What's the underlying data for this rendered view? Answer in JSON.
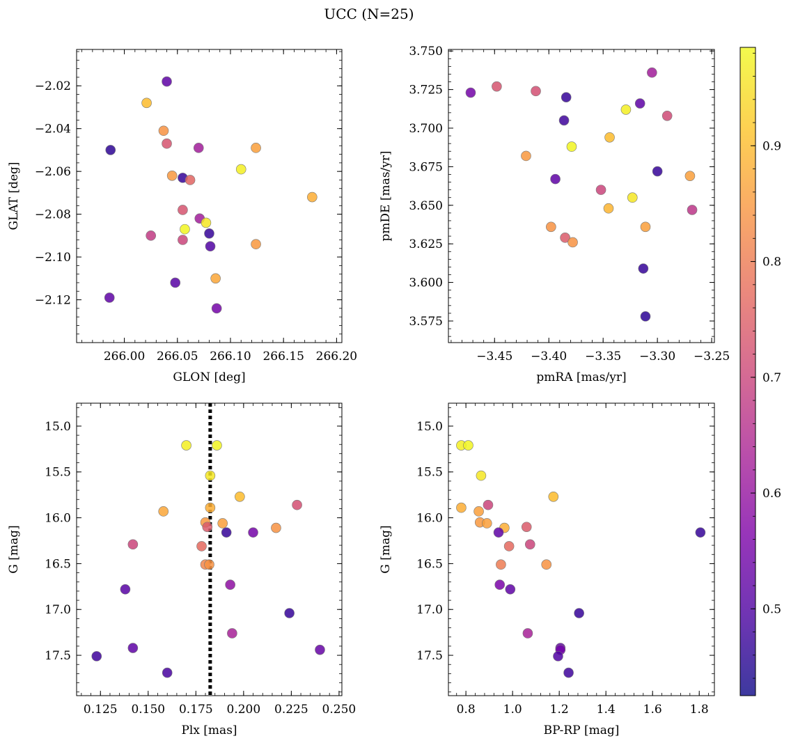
{
  "figure": {
    "title": "UCC (N=25)"
  },
  "colorbar": {
    "ticks": [
      0.5,
      0.6,
      0.7,
      0.8,
      0.9
    ],
    "tick_labels": [
      "0.5",
      "0.6",
      "0.7",
      "0.8",
      "0.9"
    ],
    "range": [
      0.425,
      0.985
    ],
    "colormap": "plasma"
  },
  "chart_data": [
    {
      "type": "scatter",
      "xlabel": "GLON [deg]",
      "ylabel": "GLAT [deg]",
      "xlim": [
        265.955,
        266.205
      ],
      "ylim": [
        -2.14,
        -2.003
      ],
      "xticks": [
        266.0,
        266.05,
        266.1,
        266.15,
        266.2
      ],
      "xtick_labels": [
        "266.00",
        "266.05",
        "266.10",
        "266.15",
        "266.20"
      ],
      "yticks": [
        -2.12,
        -2.1,
        -2.08,
        -2.06,
        -2.04,
        -2.02
      ],
      "ytick_labels": [
        "−2.12",
        "−2.10",
        "−2.08",
        "−2.06",
        "−2.04",
        "−2.02"
      ],
      "points": [
        {
          "x": 266.04,
          "y": -2.018,
          "c": 0.52
        },
        {
          "x": 266.021,
          "y": -2.028,
          "c": 0.9
        },
        {
          "x": 266.037,
          "y": -2.041,
          "c": 0.84
        },
        {
          "x": 266.04,
          "y": -2.047,
          "c": 0.73
        },
        {
          "x": 266.07,
          "y": -2.049,
          "c": 0.62
        },
        {
          "x": 266.124,
          "y": -2.049,
          "c": 0.86
        },
        {
          "x": 265.987,
          "y": -2.05,
          "c": 0.46
        },
        {
          "x": 266.11,
          "y": -2.059,
          "c": 0.97
        },
        {
          "x": 266.045,
          "y": -2.062,
          "c": 0.85
        },
        {
          "x": 266.055,
          "y": -2.063,
          "c": 0.47
        },
        {
          "x": 266.062,
          "y": -2.064,
          "c": 0.76
        },
        {
          "x": 266.177,
          "y": -2.072,
          "c": 0.88
        },
        {
          "x": 266.055,
          "y": -2.078,
          "c": 0.73
        },
        {
          "x": 266.071,
          "y": -2.082,
          "c": 0.62
        },
        {
          "x": 266.077,
          "y": -2.084,
          "c": 0.96
        },
        {
          "x": 266.057,
          "y": -2.087,
          "c": 0.98
        },
        {
          "x": 266.08,
          "y": -2.089,
          "c": 0.47
        },
        {
          "x": 266.025,
          "y": -2.09,
          "c": 0.68
        },
        {
          "x": 266.055,
          "y": -2.092,
          "c": 0.7
        },
        {
          "x": 266.124,
          "y": -2.094,
          "c": 0.85
        },
        {
          "x": 266.081,
          "y": -2.095,
          "c": 0.5
        },
        {
          "x": 266.086,
          "y": -2.11,
          "c": 0.87
        },
        {
          "x": 266.048,
          "y": -2.112,
          "c": 0.51
        },
        {
          "x": 265.986,
          "y": -2.119,
          "c": 0.52
        },
        {
          "x": 266.087,
          "y": -2.124,
          "c": 0.55
        }
      ]
    },
    {
      "type": "scatter",
      "xlabel": "pmRA [mas/yr]",
      "ylabel": "pmDE [mas/yr]",
      "xlim": [
        -3.4925,
        -3.2475
      ],
      "ylim": [
        3.561,
        3.751
      ],
      "xticks": [
        -3.45,
        -3.4,
        -3.35,
        -3.3,
        -3.25
      ],
      "xtick_labels": [
        "−3.45",
        "−3.40",
        "−3.35",
        "−3.30",
        "−3.25"
      ],
      "yticks": [
        3.575,
        3.6,
        3.625,
        3.65,
        3.675,
        3.7,
        3.725,
        3.75
      ],
      "ytick_labels": [
        "3.575",
        "3.600",
        "3.625",
        "3.650",
        "3.675",
        "3.700",
        "3.725",
        "3.750"
      ],
      "points": [
        {
          "x": -3.305,
          "y": 3.736,
          "c": 0.62
        },
        {
          "x": -3.448,
          "y": 3.727,
          "c": 0.73
        },
        {
          "x": -3.472,
          "y": 3.723,
          "c": 0.55
        },
        {
          "x": -3.412,
          "y": 3.724,
          "c": 0.72
        },
        {
          "x": -3.384,
          "y": 3.72,
          "c": 0.47
        },
        {
          "x": -3.316,
          "y": 3.716,
          "c": 0.52
        },
        {
          "x": -3.329,
          "y": 3.712,
          "c": 0.97
        },
        {
          "x": -3.291,
          "y": 3.708,
          "c": 0.71
        },
        {
          "x": -3.386,
          "y": 3.705,
          "c": 0.48
        },
        {
          "x": -3.344,
          "y": 3.694,
          "c": 0.9
        },
        {
          "x": -3.379,
          "y": 3.688,
          "c": 0.98
        },
        {
          "x": -3.421,
          "y": 3.682,
          "c": 0.85
        },
        {
          "x": -3.3,
          "y": 3.672,
          "c": 0.47
        },
        {
          "x": -3.27,
          "y": 3.669,
          "c": 0.86
        },
        {
          "x": -3.394,
          "y": 3.667,
          "c": 0.52
        },
        {
          "x": -3.352,
          "y": 3.66,
          "c": 0.7
        },
        {
          "x": -3.323,
          "y": 3.655,
          "c": 0.96
        },
        {
          "x": -3.345,
          "y": 3.648,
          "c": 0.89
        },
        {
          "x": -3.268,
          "y": 3.647,
          "c": 0.67
        },
        {
          "x": -3.398,
          "y": 3.636,
          "c": 0.84
        },
        {
          "x": -3.311,
          "y": 3.636,
          "c": 0.86
        },
        {
          "x": -3.385,
          "y": 3.629,
          "c": 0.74
        },
        {
          "x": -3.378,
          "y": 3.626,
          "c": 0.84
        },
        {
          "x": -3.313,
          "y": 3.609,
          "c": 0.47
        },
        {
          "x": -3.311,
          "y": 3.578,
          "c": 0.46
        }
      ]
    },
    {
      "type": "scatter",
      "xlabel": "Plx [mas]",
      "ylabel": "G [mag]",
      "xlim": [
        0.1125,
        0.2515
      ],
      "ylim": [
        17.94,
        14.75
      ],
      "y_inverted": true,
      "vline": 0.1825,
      "xticks": [
        0.125,
        0.15,
        0.175,
        0.2,
        0.225,
        0.25
      ],
      "xtick_labels": [
        "0.125",
        "0.150",
        "0.175",
        "0.200",
        "0.225",
        "0.250"
      ],
      "yticks": [
        15.0,
        15.5,
        16.0,
        16.5,
        17.0,
        17.5
      ],
      "ytick_labels": [
        "15.0",
        "15.5",
        "16.0",
        "16.5",
        "17.0",
        "17.5"
      ],
      "points": [
        {
          "x": 0.17,
          "y": 15.21,
          "c": 0.97
        },
        {
          "x": 0.186,
          "y": 15.21,
          "c": 0.98
        },
        {
          "x": 0.1825,
          "y": 15.54,
          "c": 0.96
        },
        {
          "x": 0.198,
          "y": 15.77,
          "c": 0.9
        },
        {
          "x": 0.228,
          "y": 15.86,
          "c": 0.72
        },
        {
          "x": 0.158,
          "y": 15.93,
          "c": 0.87
        },
        {
          "x": 0.1825,
          "y": 15.89,
          "c": 0.88
        },
        {
          "x": 0.18,
          "y": 16.05,
          "c": 0.85
        },
        {
          "x": 0.189,
          "y": 16.06,
          "c": 0.86
        },
        {
          "x": 0.181,
          "y": 16.1,
          "c": 0.74
        },
        {
          "x": 0.217,
          "y": 16.11,
          "c": 0.84
        },
        {
          "x": 0.191,
          "y": 16.16,
          "c": 0.47
        },
        {
          "x": 0.205,
          "y": 16.16,
          "c": 0.55
        },
        {
          "x": 0.142,
          "y": 16.29,
          "c": 0.7
        },
        {
          "x": 0.178,
          "y": 16.31,
          "c": 0.77
        },
        {
          "x": 0.18,
          "y": 16.51,
          "c": 0.82
        },
        {
          "x": 0.182,
          "y": 16.51,
          "c": 0.84
        },
        {
          "x": 0.193,
          "y": 16.73,
          "c": 0.59
        },
        {
          "x": 0.138,
          "y": 16.78,
          "c": 0.51
        },
        {
          "x": 0.224,
          "y": 17.04,
          "c": 0.47
        },
        {
          "x": 0.194,
          "y": 17.26,
          "c": 0.63
        },
        {
          "x": 0.142,
          "y": 17.42,
          "c": 0.52
        },
        {
          "x": 0.24,
          "y": 17.44,
          "c": 0.53
        },
        {
          "x": 0.123,
          "y": 17.51,
          "c": 0.48
        },
        {
          "x": 0.16,
          "y": 17.69,
          "c": 0.49
        }
      ]
    },
    {
      "type": "scatter",
      "xlabel": "BP-RP [mag]",
      "ylabel": "G [mag]",
      "xlim": [
        0.725,
        1.865
      ],
      "ylim": [
        17.94,
        14.75
      ],
      "y_inverted": true,
      "xticks": [
        0.8,
        1.0,
        1.2,
        1.4,
        1.6,
        1.8
      ],
      "xtick_labels": [
        "0.8",
        "1.0",
        "1.2",
        "1.4",
        "1.6",
        "1.8"
      ],
      "yticks": [
        15.0,
        15.5,
        16.0,
        16.5,
        17.0,
        17.5
      ],
      "ytick_labels": [
        "15.0",
        "15.5",
        "16.0",
        "16.5",
        "17.0",
        "17.5"
      ],
      "points": [
        {
          "x": 0.78,
          "y": 15.21,
          "c": 0.97
        },
        {
          "x": 0.81,
          "y": 15.21,
          "c": 0.98
        },
        {
          "x": 0.865,
          "y": 15.54,
          "c": 0.96
        },
        {
          "x": 1.175,
          "y": 15.77,
          "c": 0.9
        },
        {
          "x": 0.895,
          "y": 15.86,
          "c": 0.7
        },
        {
          "x": 0.78,
          "y": 15.89,
          "c": 0.88
        },
        {
          "x": 0.855,
          "y": 15.93,
          "c": 0.86
        },
        {
          "x": 0.86,
          "y": 16.05,
          "c": 0.85
        },
        {
          "x": 0.89,
          "y": 16.06,
          "c": 0.86
        },
        {
          "x": 0.965,
          "y": 16.11,
          "c": 0.88
        },
        {
          "x": 1.06,
          "y": 16.1,
          "c": 0.74
        },
        {
          "x": 0.94,
          "y": 16.16,
          "c": 0.52
        },
        {
          "x": 1.805,
          "y": 16.16,
          "c": 0.47
        },
        {
          "x": 1.075,
          "y": 16.29,
          "c": 0.7
        },
        {
          "x": 0.985,
          "y": 16.31,
          "c": 0.77
        },
        {
          "x": 0.95,
          "y": 16.51,
          "c": 0.8
        },
        {
          "x": 1.145,
          "y": 16.51,
          "c": 0.84
        },
        {
          "x": 0.945,
          "y": 16.73,
          "c": 0.56
        },
        {
          "x": 0.99,
          "y": 16.78,
          "c": 0.52
        },
        {
          "x": 1.285,
          "y": 17.04,
          "c": 0.47
        },
        {
          "x": 1.065,
          "y": 17.26,
          "c": 0.63
        },
        {
          "x": 1.205,
          "y": 17.42,
          "c": 0.52
        },
        {
          "x": 1.205,
          "y": 17.44,
          "c": 0.55
        },
        {
          "x": 1.195,
          "y": 17.51,
          "c": 0.5
        },
        {
          "x": 1.24,
          "y": 17.69,
          "c": 0.48
        }
      ]
    }
  ]
}
